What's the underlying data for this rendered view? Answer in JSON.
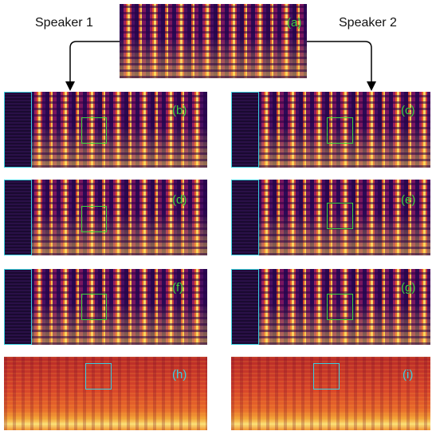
{
  "speakers": [
    "Speaker 1",
    "Speaker 2"
  ],
  "panels": [
    "(a)",
    "(b)",
    "(c)",
    "(d)",
    "(e)",
    "(f)",
    "(g)",
    "(h)",
    "(i)"
  ]
}
